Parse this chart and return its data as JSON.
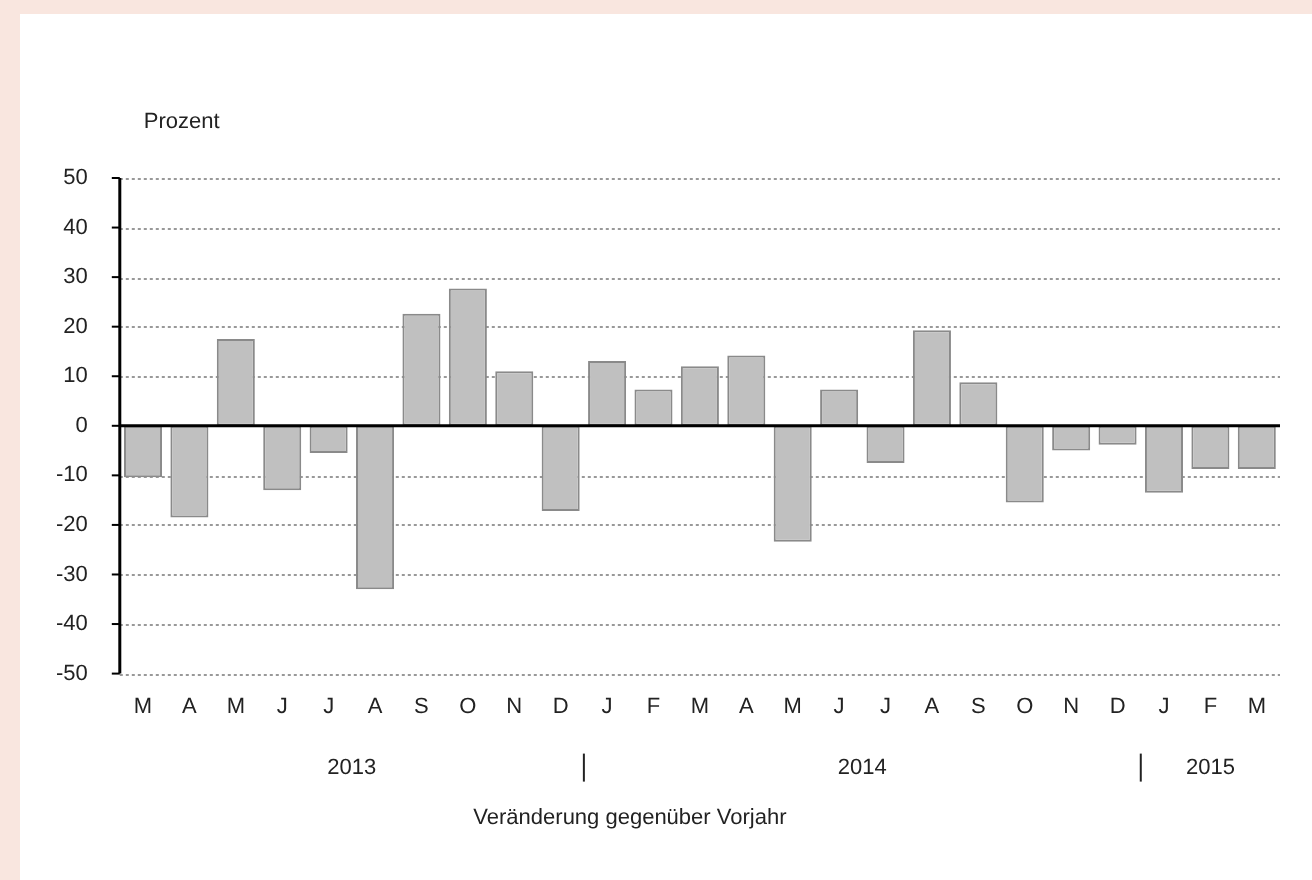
{
  "chart_data": {
    "type": "bar",
    "ylabel": "Prozent",
    "xlabel": "Veränderung gegenüber Vorjahr",
    "categories": [
      "M",
      "A",
      "M",
      "J",
      "J",
      "A",
      "S",
      "O",
      "N",
      "D",
      "J",
      "F",
      "M",
      "A",
      "M",
      "J",
      "J",
      "A",
      "S",
      "O",
      "N",
      "D",
      "J",
      "F",
      "M"
    ],
    "values": [
      -10.4,
      -18.5,
      17.5,
      -13,
      -5.5,
      -33,
      22.6,
      27.7,
      11,
      -17.2,
      13.1,
      7.3,
      12,
      14.2,
      -23.4,
      7.3,
      -7.5,
      19.3,
      8.8,
      -15.5,
      -5,
      -3.8,
      -13.5,
      -8.7,
      -8.7
    ],
    "color": "#c0c0c0",
    "annotations": [
      "2013",
      "2014",
      "2015"
    ],
    "ylim": [
      -50,
      50
    ],
    "yticks": [
      -50,
      -40,
      -30,
      -20,
      -10,
      0,
      10,
      20,
      30,
      40,
      50
    ],
    "grid": "y"
  }
}
